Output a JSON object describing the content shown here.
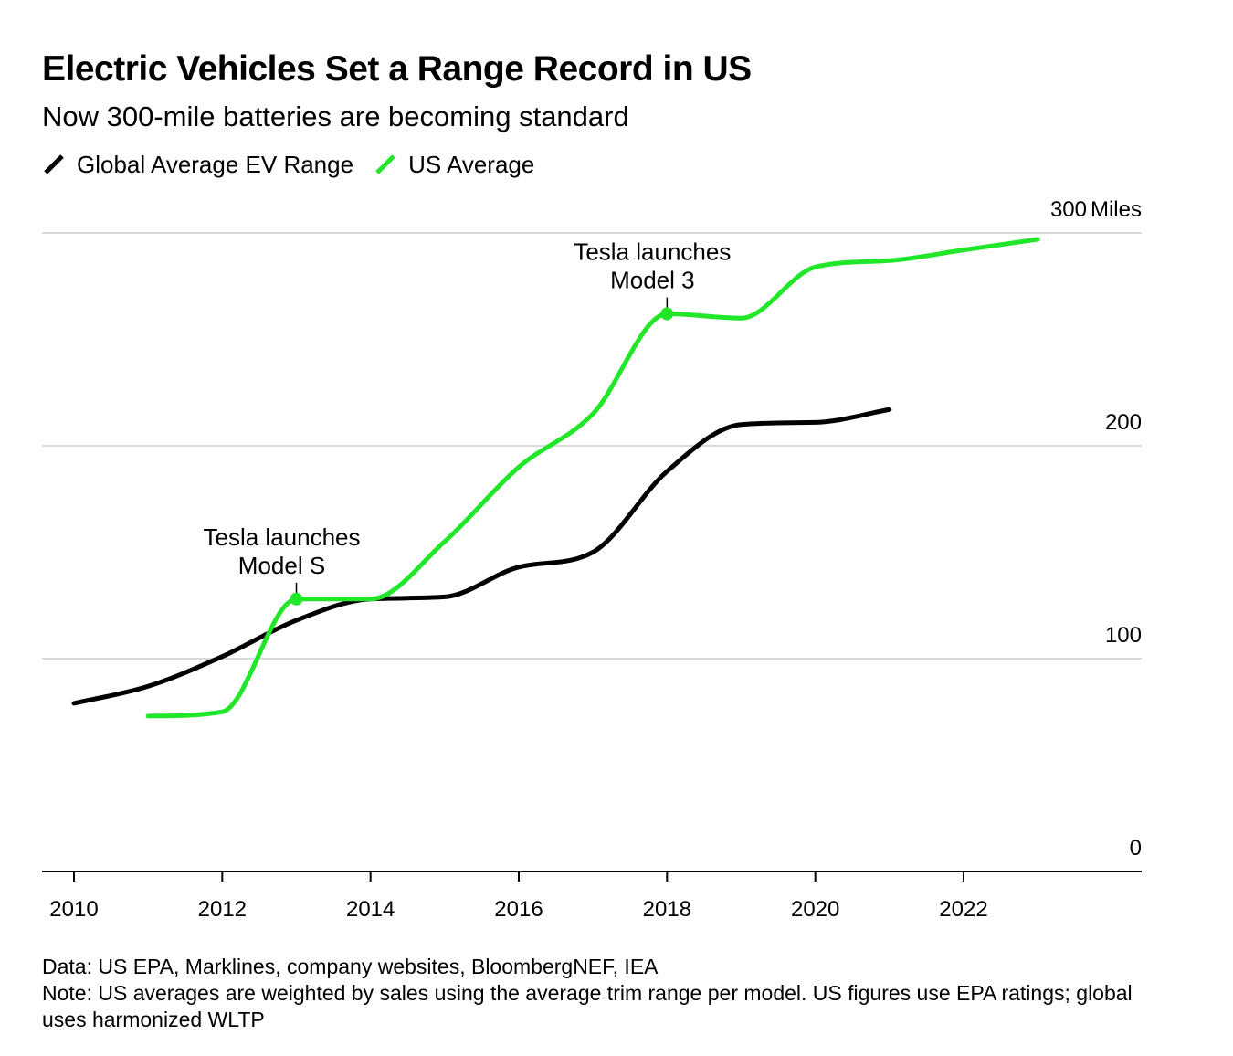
{
  "header": {
    "title": "Electric Vehicles Set a Range Record in US",
    "subtitle": "Now 300-mile batteries are becoming standard"
  },
  "legend": {
    "items": [
      {
        "label": "Global Average EV Range",
        "color": "#000000"
      },
      {
        "label": "US Average",
        "color": "#22e629"
      }
    ]
  },
  "chart_data": {
    "type": "line",
    "title": "Electric Vehicles Set a Range Record in US",
    "subtitle": "Now 300-mile batteries are becoming standard",
    "xlabel": "",
    "ylabel": "",
    "y_unit_label": "Miles",
    "xlim": [
      2009.8,
      2024.6
    ],
    "ylim": [
      0,
      300
    ],
    "x_ticks": [
      2010,
      2012,
      2014,
      2016,
      2018,
      2020,
      2022
    ],
    "y_ticks": [
      0,
      100,
      200,
      300
    ],
    "grid": "horizontal",
    "legend_position": "top-left",
    "series": [
      {
        "name": "Global Average EV Range",
        "color": "#000000",
        "x": [
          2010,
          2011,
          2012,
          2013,
          2014,
          2015,
          2016,
          2017,
          2018,
          2019,
          2020,
          2021
        ],
        "y": [
          79,
          87,
          101,
          118,
          128,
          129,
          143,
          150,
          188,
          210,
          211,
          217
        ]
      },
      {
        "name": "US Average",
        "color": "#22e629",
        "x": [
          2011,
          2012,
          2013,
          2014,
          2015,
          2016,
          2017,
          2018,
          2019,
          2020,
          2021,
          2022,
          2023
        ],
        "y": [
          73,
          75,
          128,
          128,
          155,
          190,
          215,
          262,
          260,
          284,
          287,
          292,
          297
        ]
      }
    ],
    "annotations": [
      {
        "series": "US Average",
        "x": 2013,
        "y": 128,
        "text": [
          "Tesla launches",
          "Model S"
        ]
      },
      {
        "series": "US Average",
        "x": 2018,
        "y": 262,
        "text": [
          "Tesla launches",
          "Model 3"
        ]
      }
    ]
  },
  "footer": {
    "source": "Data: US EPA, Marklines, company websites, BloombergNEF, IEA",
    "note": "Note: US averages are weighted by sales using the average trim range per model. US figures use EPA ratings; global uses harmonized WLTP"
  }
}
